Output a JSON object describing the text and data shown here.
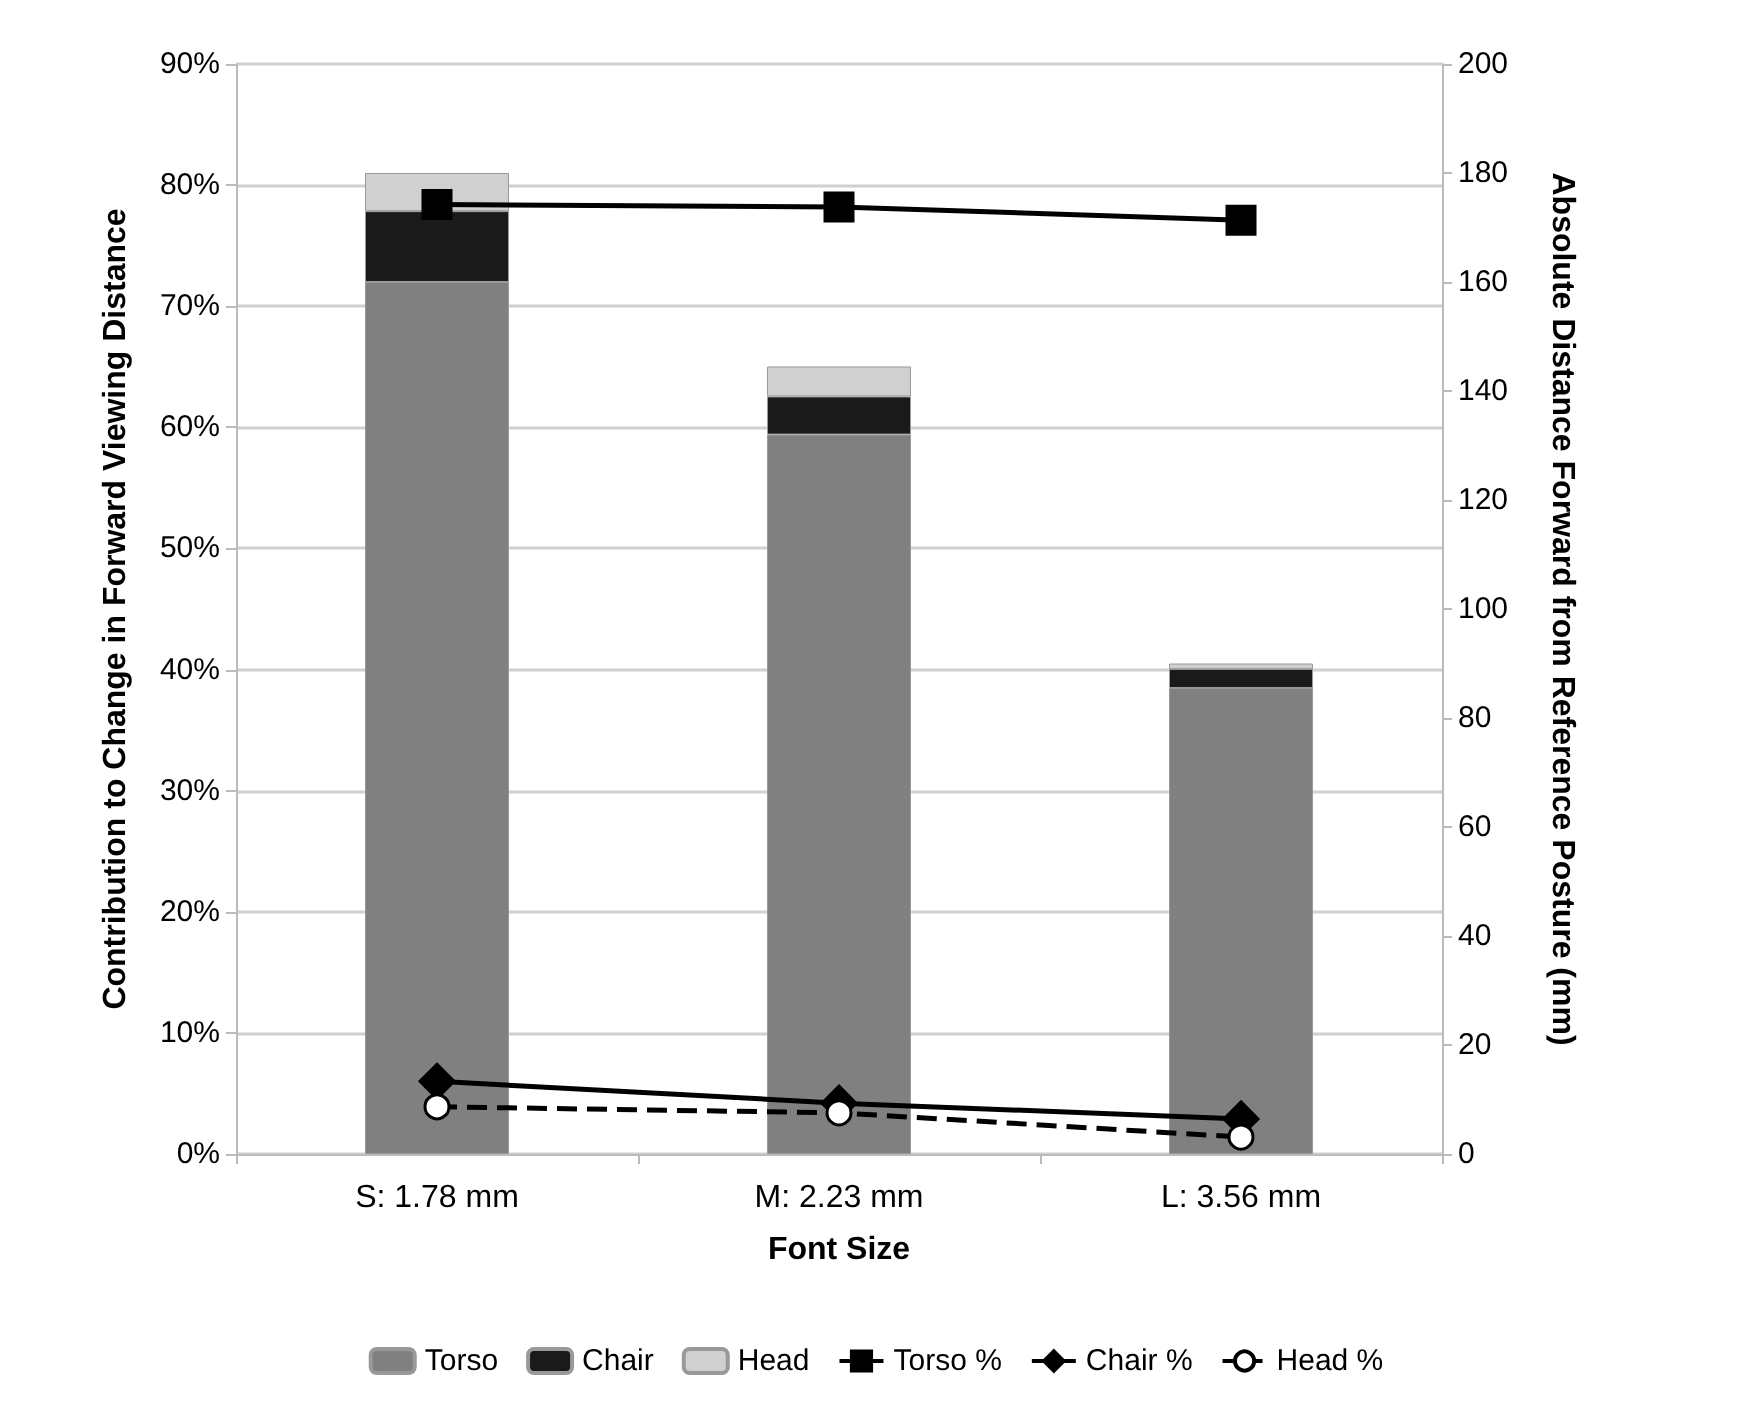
{
  "chart_data": {
    "type": "bar",
    "stacked": true,
    "xlabel": "Font Size",
    "ylabel": "Contribution to Change in Forward Viewing Distance",
    "y2label": "Absolute Distance Forward from Reference Posture (mm)",
    "categories": [
      "S: 1.78 mm",
      "M: 2.23 mm",
      "L: 3.56 mm"
    ],
    "series": [
      {
        "name": "Torso",
        "axis": "y2",
        "color": "#808080",
        "values": [
          160,
          132,
          85.5
        ]
      },
      {
        "name": "Chair",
        "axis": "y2",
        "color": "#1a1a1a",
        "values": [
          13,
          7,
          3.5
        ]
      },
      {
        "name": "Head",
        "axis": "y2",
        "color": "#d0d0d0",
        "values": [
          7,
          5.5,
          1
        ]
      },
      {
        "name": "Torso %",
        "type": "line",
        "color": "#000000",
        "marker": "square",
        "line_style": "solid",
        "values": [
          78.4,
          78.2,
          77.1
        ]
      },
      {
        "name": "Chair %",
        "type": "line",
        "color": "#000000",
        "marker": "diamond",
        "line_style": "solid",
        "values": [
          6.0,
          4.2,
          2.9
        ]
      },
      {
        "name": "Head %",
        "type": "line",
        "color": "#000000",
        "marker": "circle",
        "line_style": "dashed",
        "values": [
          3.9,
          3.4,
          1.4
        ]
      }
    ],
    "ylim": [
      0,
      90
    ],
    "yticks": [
      {
        "value": 0,
        "label": "0%"
      },
      {
        "value": 10,
        "label": "10%"
      },
      {
        "value": 20,
        "label": "20%"
      },
      {
        "value": 30,
        "label": "30%"
      },
      {
        "value": 40,
        "label": "40%"
      },
      {
        "value": 50,
        "label": "50%"
      },
      {
        "value": 60,
        "label": "60%"
      },
      {
        "value": 70,
        "label": "70%"
      },
      {
        "value": 80,
        "label": "80%"
      },
      {
        "value": 90,
        "label": "90%"
      }
    ],
    "y2lim": [
      0,
      200
    ],
    "y2ticks": [
      0,
      20,
      40,
      60,
      80,
      100,
      120,
      140,
      160,
      180,
      200
    ],
    "grid": "y",
    "legend": "bottom"
  }
}
